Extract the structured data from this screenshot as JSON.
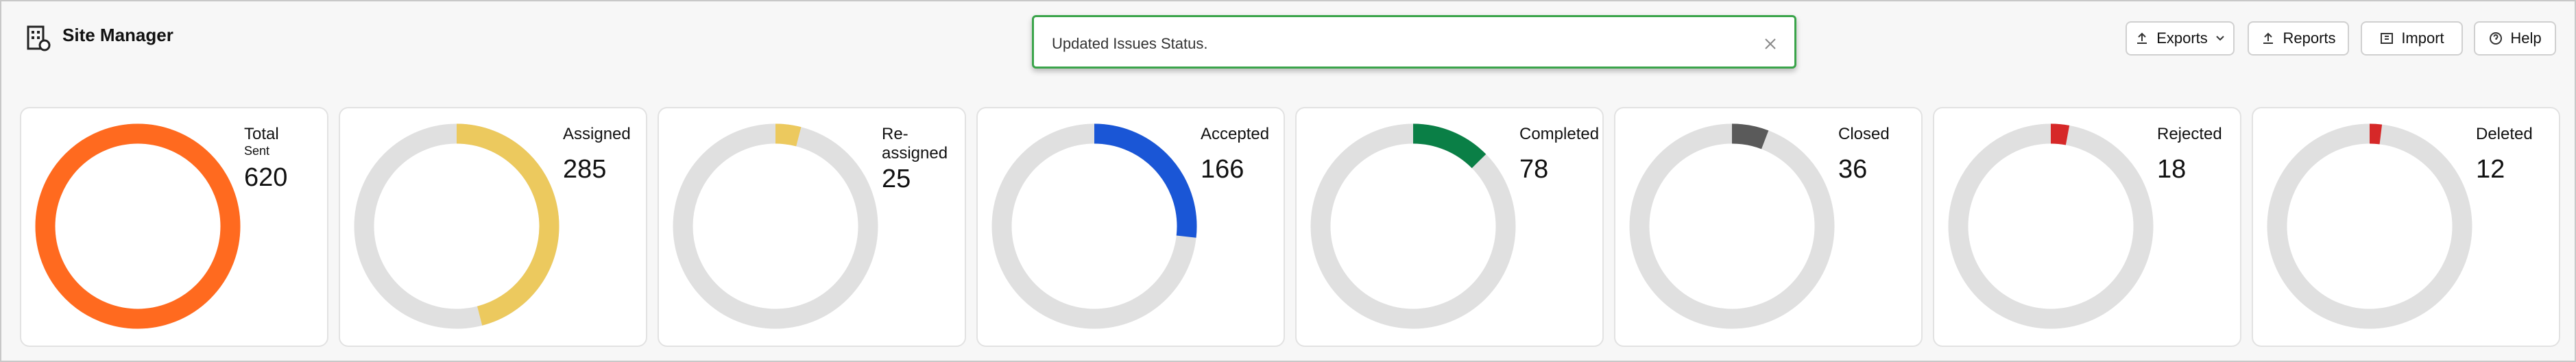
{
  "header": {
    "title": "Site Manager"
  },
  "toast": {
    "message": "Updated Issues Status."
  },
  "buttons": [
    "Exports",
    "Reports",
    "Import",
    "Help"
  ],
  "cards": [
    {
      "label": "Total",
      "sublabel": "Sent",
      "value": 620,
      "color": "#ff6a1f"
    },
    {
      "label": "Assigned",
      "value": 285,
      "color": "#ecc95e"
    },
    {
      "label": "Re-assigned",
      "value": 25,
      "color": "#ecc95e"
    },
    {
      "label": "Accepted",
      "value": 166,
      "color": "#1a56d6"
    },
    {
      "label": "Completed",
      "value": 78,
      "color": "#0a7f46"
    },
    {
      "label": "Closed",
      "value": 36,
      "color": "#5a5a5a"
    },
    {
      "label": "Rejected",
      "value": 18,
      "color": "#d62828"
    },
    {
      "label": "Deleted",
      "value": 12,
      "color": "#d62828"
    }
  ]
}
